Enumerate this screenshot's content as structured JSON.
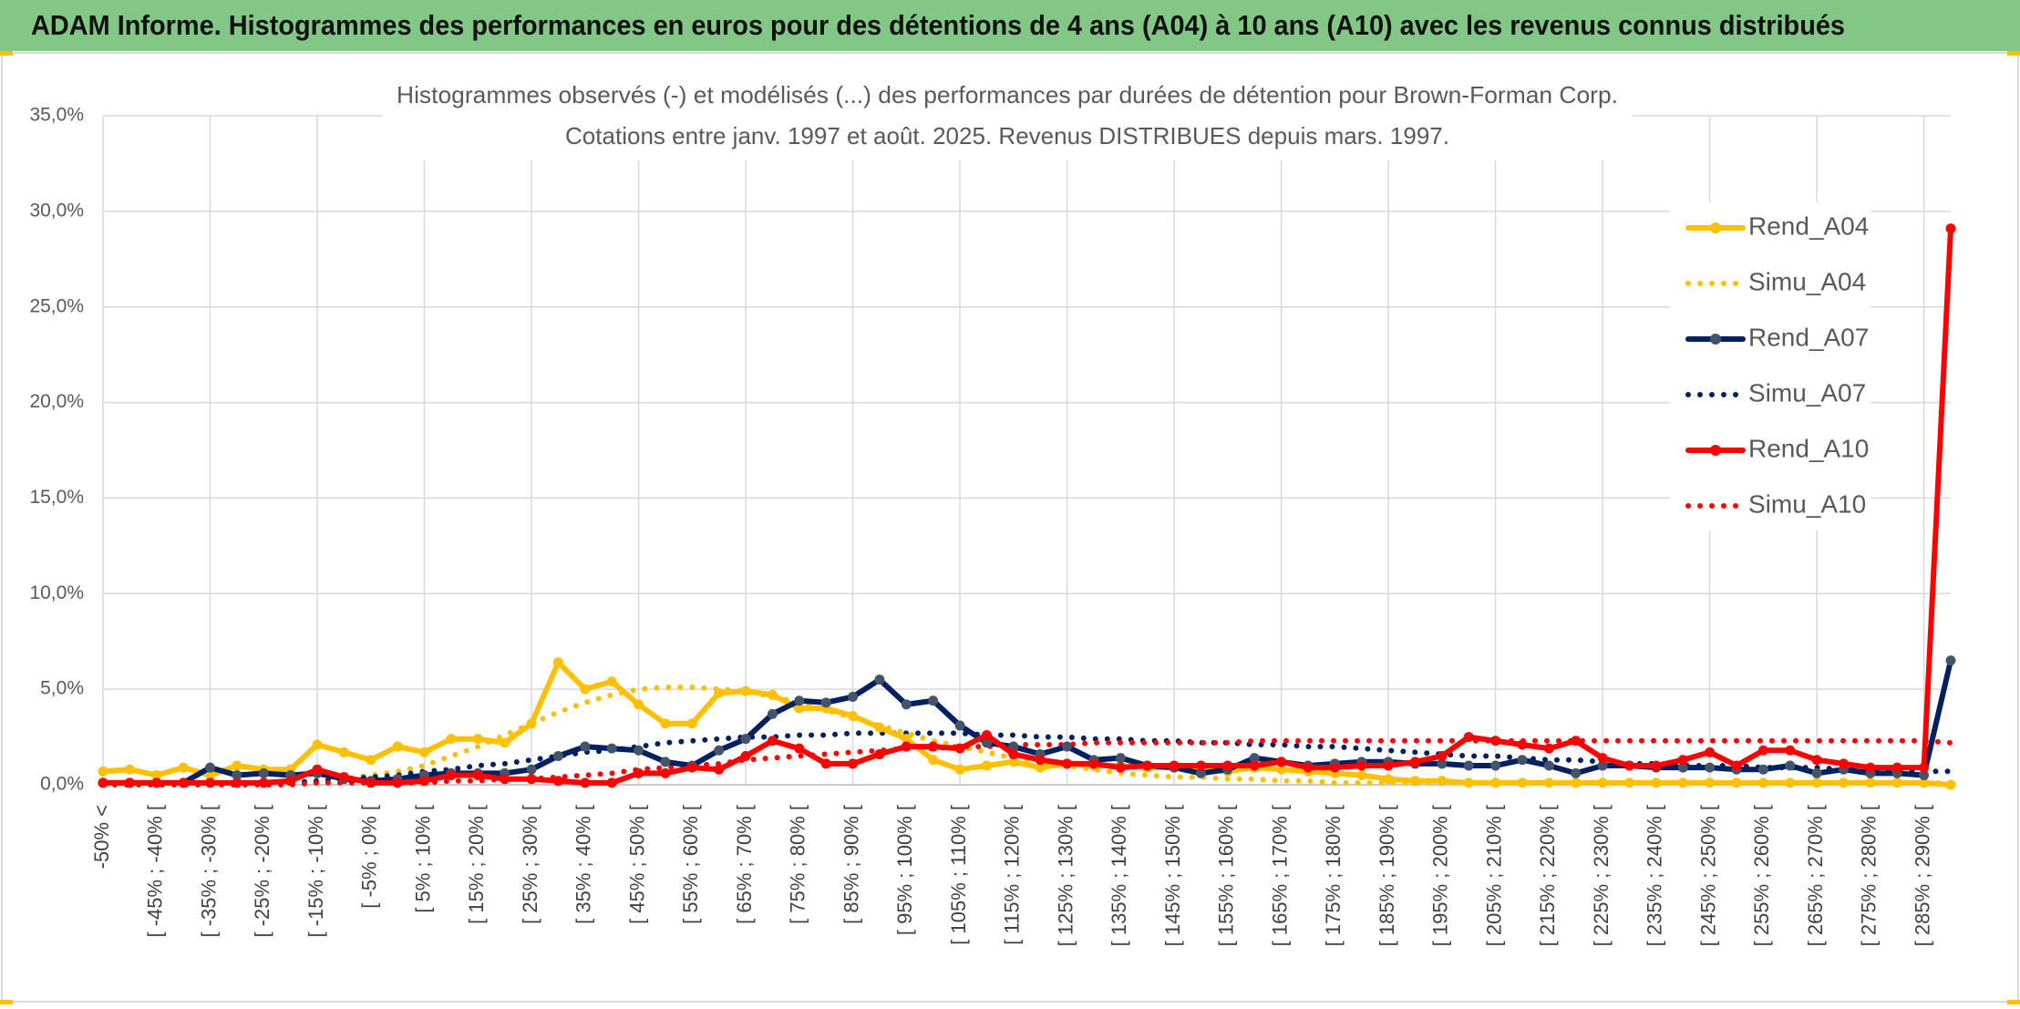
{
  "chart_data": {
    "type": "line",
    "title": "ADAM Informe. Histogrammes des performances en euros pour des détentions de 4 ans (A04) à 10 ans (A10) avec les revenus connus distribués",
    "subtitle": [
      "Histogrammes observés (-) et modélisés (...) des performances par durées de détention pour Brown-Forman Corp.",
      "Cotations entre janv. 1997 et août. 2025. Revenus DISTRIBUES depuis mars. 1997."
    ],
    "categories": [
      "-50% <",
      null,
      "[ -45% ; -40% [",
      null,
      "[ -35% ; -30% [",
      null,
      "[ -25% ; -20% [",
      null,
      "[ -15% ; -10% [",
      null,
      "[ -5% ; 0% [",
      null,
      "[ 5% ; 10% [",
      null,
      "[ 15% ; 20% [",
      null,
      "[ 25% ; 30% [",
      null,
      "[ 35% ; 40% [",
      null,
      "[ 45% ; 50% [",
      null,
      "[ 55% ; 60% [",
      null,
      "[ 65% ; 70% [",
      null,
      "[ 75% ; 80% [",
      null,
      "[ 85% ; 90% [",
      null,
      "[ 95% ; 100% [",
      null,
      "[ 105% ; 110% [",
      null,
      "[ 115% ; 120% [",
      null,
      "[ 125% ; 130% [",
      null,
      "[ 135% ; 140% [",
      null,
      "[ 145% ; 150% [",
      null,
      "[ 155% ; 160% [",
      null,
      "[ 165% ; 170% [",
      null,
      "[ 175% ; 180% [",
      null,
      "[ 185% ; 190% [",
      null,
      "[ 195% ; 200% [",
      null,
      "[ 205% ; 210% [",
      null,
      "[ 215% ; 220% [",
      null,
      "[ 225% ; 230% [",
      null,
      "[ 235% ; 240% [",
      null,
      "[ 245% ; 250% [",
      null,
      "[ 255% ; 260% [",
      null,
      "[ 265% ; 270% [",
      null,
      "[ 275% ; 280% [",
      null,
      "[ 285% ; 290% [",
      null
    ],
    "series": [
      {
        "name": "Rend_A04",
        "color": "#ffc000",
        "marker_color": "#ffc000",
        "style": "solid",
        "values": [
          0.7,
          0.8,
          0.5,
          0.9,
          0.5,
          1.0,
          0.8,
          0.8,
          2.1,
          1.7,
          1.3,
          2.0,
          1.7,
          2.4,
          2.4,
          2.2,
          3.2,
          6.4,
          5.0,
          5.4,
          4.2,
          3.2,
          3.2,
          4.8,
          4.9,
          4.7,
          4.0,
          4.0,
          3.6,
          3.0,
          2.4,
          1.3,
          0.8,
          1.0,
          1.2,
          0.9,
          1.1,
          1.0,
          1.0,
          0.9,
          0.9,
          0.8,
          0.7,
          0.9,
          0.8,
          0.7,
          0.6,
          0.5,
          0.3,
          0.2,
          0.2,
          0.1,
          0.1,
          0.1,
          0.1,
          0.1,
          0.1,
          0.1,
          0.1,
          0.1,
          0.1,
          0.1,
          0.1,
          0.1,
          0.1,
          0.1,
          0.1,
          0.1,
          0.1,
          0.0
        ]
      },
      {
        "name": "Simu_A04",
        "color": "#ffc000",
        "style": "dotted",
        "values": [
          0,
          0,
          0,
          0,
          0,
          0.1,
          0.1,
          0.1,
          0.2,
          0.3,
          0.5,
          0.7,
          1.0,
          1.5,
          2.0,
          2.6,
          3.2,
          3.8,
          4.3,
          4.7,
          5.0,
          5.1,
          5.1,
          5.0,
          4.9,
          4.6,
          4.3,
          3.9,
          3.5,
          3.1,
          2.7,
          2.3,
          2.0,
          1.7,
          1.4,
          1.2,
          1.0,
          0.8,
          0.6,
          0.5,
          0.4,
          0.4,
          0.3,
          0.3,
          0.2,
          0.2,
          0.1,
          0.1,
          0.1,
          0.1,
          0.1,
          0.1,
          0.1,
          0.1,
          0.1,
          0.1,
          0.1,
          0.1,
          0.1,
          0.1,
          0.1,
          0.1,
          0.1,
          0.1,
          0.1,
          0.1,
          0.1,
          0.1,
          0.1,
          0.1
        ]
      },
      {
        "name": "Rend_A07",
        "color": "#002060",
        "marker_color": "#44546a",
        "style": "solid",
        "values": [
          0.1,
          0.1,
          0.1,
          0.1,
          0.9,
          0.5,
          0.6,
          0.5,
          0.6,
          0.3,
          0.2,
          0.3,
          0.5,
          0.6,
          0.6,
          0.6,
          0.8,
          1.5,
          2.0,
          1.9,
          1.8,
          1.2,
          1.0,
          1.8,
          2.4,
          3.7,
          4.4,
          4.3,
          4.6,
          5.5,
          4.2,
          4.4,
          3.1,
          2.2,
          2.0,
          1.6,
          2.0,
          1.3,
          1.4,
          1.0,
          0.9,
          0.6,
          0.8,
          1.4,
          1.2,
          1.0,
          1.1,
          1.2,
          1.2,
          1.1,
          1.1,
          1.0,
          1.0,
          1.3,
          1.0,
          0.6,
          1.0,
          1.0,
          0.9,
          0.9,
          0.9,
          0.8,
          0.8,
          1.0,
          0.6,
          0.8,
          0.6,
          0.6,
          0.5,
          6.5
        ]
      },
      {
        "name": "Simu_A07",
        "color": "#002060",
        "style": "dotted",
        "values": [
          0.1,
          0.1,
          0.1,
          0.1,
          0.1,
          0.1,
          0.1,
          0.1,
          0.2,
          0.3,
          0.4,
          0.5,
          0.7,
          0.8,
          1.0,
          1.1,
          1.3,
          1.5,
          1.7,
          1.8,
          2.0,
          2.2,
          2.3,
          2.4,
          2.5,
          2.5,
          2.6,
          2.6,
          2.7,
          2.7,
          2.7,
          2.7,
          2.7,
          2.6,
          2.6,
          2.5,
          2.5,
          2.4,
          2.4,
          2.3,
          2.3,
          2.2,
          2.2,
          2.1,
          2.1,
          2.0,
          2.0,
          1.9,
          1.8,
          1.7,
          1.6,
          1.5,
          1.5,
          1.4,
          1.3,
          1.3,
          1.2,
          1.1,
          1.1,
          1.0,
          1.0,
          1.0,
          0.9,
          0.9,
          0.9,
          0.8,
          0.8,
          0.8,
          0.7,
          0.7
        ]
      },
      {
        "name": "Rend_A10",
        "color": "#ff0000",
        "marker_color": "#ff0000",
        "style": "solid",
        "values": [
          0.1,
          0.1,
          0.1,
          0.1,
          0.1,
          0.1,
          0.1,
          0.2,
          0.8,
          0.4,
          0.1,
          0.1,
          0.2,
          0.5,
          0.5,
          0.3,
          0.3,
          0.2,
          0.1,
          0.1,
          0.6,
          0.6,
          0.9,
          0.8,
          1.5,
          2.3,
          1.9,
          1.1,
          1.1,
          1.6,
          2.0,
          2.0,
          1.9,
          2.6,
          1.6,
          1.3,
          1.1,
          1.1,
          0.9,
          1.0,
          1.0,
          1.0,
          1.0,
          1.0,
          1.2,
          0.9,
          0.9,
          1.0,
          1.0,
          1.2,
          1.5,
          2.5,
          2.3,
          2.1,
          1.9,
          2.3,
          1.4,
          1.0,
          1.0,
          1.3,
          1.7,
          1.0,
          1.8,
          1.8,
          1.3,
          1.1,
          0.9,
          0.9,
          0.9,
          29.1
        ]
      },
      {
        "name": "Simu_A10",
        "color": "#ff0000",
        "style": "dotted",
        "values": [
          0.0,
          0.0,
          0.0,
          0.0,
          0.0,
          0.0,
          0.0,
          0.0,
          0.1,
          0.1,
          0.1,
          0.1,
          0.1,
          0.2,
          0.2,
          0.3,
          0.3,
          0.4,
          0.5,
          0.6,
          0.8,
          0.9,
          1.0,
          1.1,
          1.3,
          1.4,
          1.5,
          1.6,
          1.7,
          1.8,
          1.9,
          1.9,
          2.0,
          2.0,
          2.1,
          2.1,
          2.1,
          2.2,
          2.2,
          2.2,
          2.2,
          2.2,
          2.2,
          2.3,
          2.3,
          2.3,
          2.3,
          2.3,
          2.3,
          2.3,
          2.3,
          2.3,
          2.3,
          2.3,
          2.3,
          2.3,
          2.3,
          2.3,
          2.3,
          2.3,
          2.3,
          2.3,
          2.3,
          2.3,
          2.3,
          2.3,
          2.3,
          2.3,
          2.3,
          2.2
        ]
      }
    ],
    "ylim": [
      0,
      35
    ],
    "yticks": [
      {
        "value": 0,
        "label": "0,0%"
      },
      {
        "value": 5,
        "label": "5,0%"
      },
      {
        "value": 10,
        "label": "10,0%"
      },
      {
        "value": 15,
        "label": "15,0%"
      },
      {
        "value": 20,
        "label": "20,0%"
      },
      {
        "value": 25,
        "label": "25,0%"
      },
      {
        "value": 30,
        "label": "30,0%"
      },
      {
        "value": 35,
        "label": "35,0%"
      }
    ],
    "grid": true,
    "legend": "right"
  }
}
